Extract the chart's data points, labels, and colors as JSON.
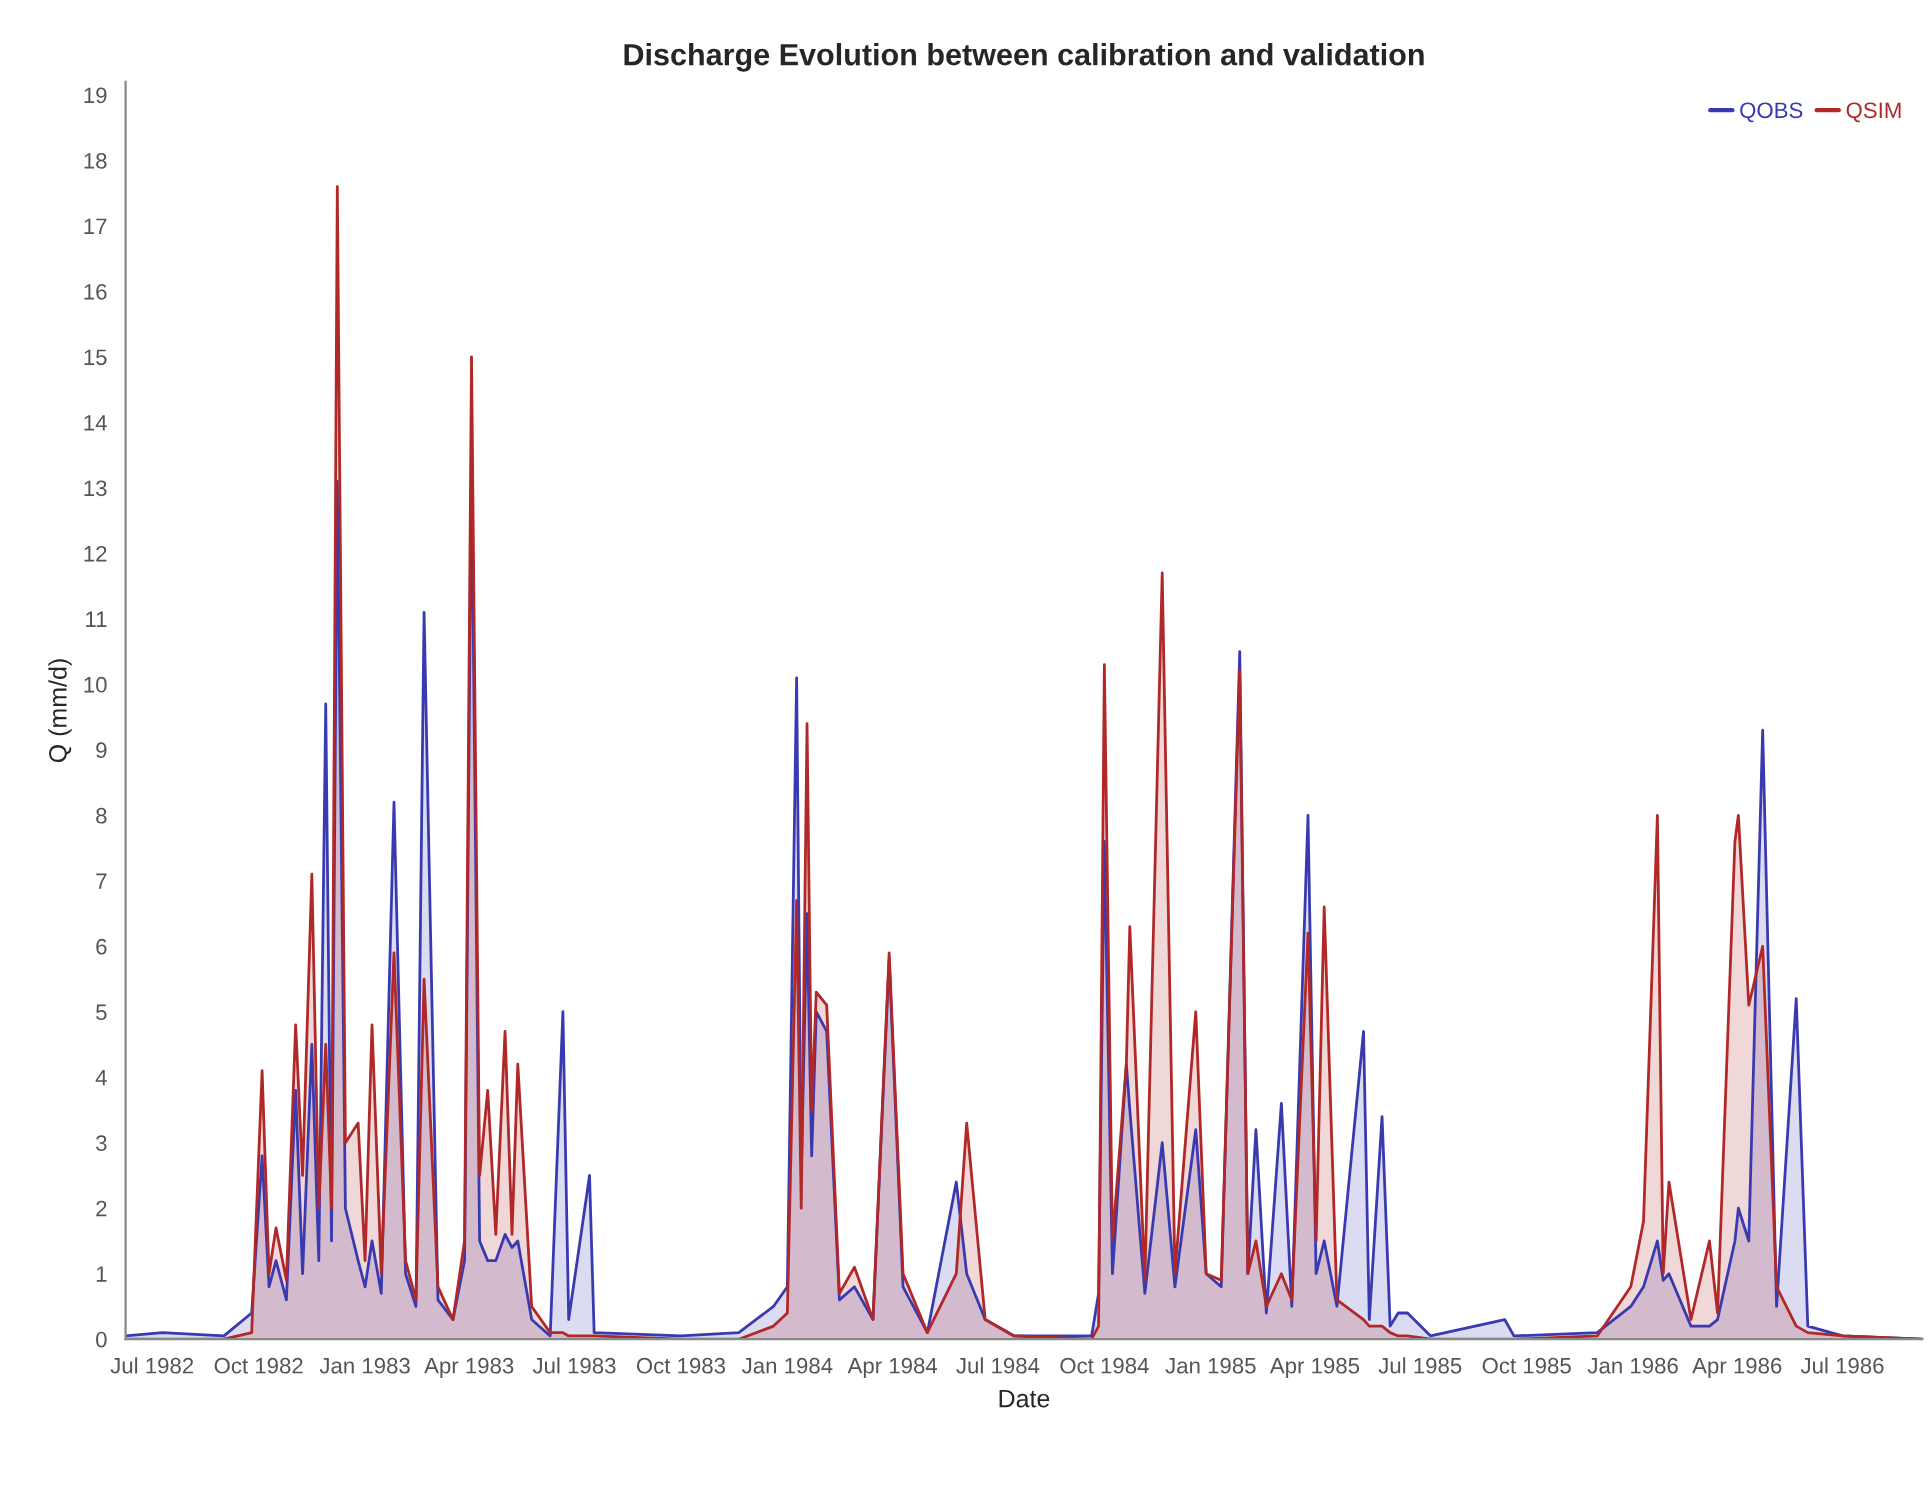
{
  "chart_data": {
    "type": "area",
    "title": "Discharge Evolution between calibration and validation",
    "xlabel": "Date",
    "ylabel": "Q (mm/d)",
    "x": [
      "1982-06-08",
      "1982-07-10",
      "1982-09-01",
      "1982-09-25",
      "1982-10-04",
      "1982-10-10",
      "1982-10-16",
      "1982-10-25",
      "1982-11-02",
      "1982-11-08",
      "1982-11-16",
      "1982-11-22",
      "1982-11-28",
      "1982-12-03",
      "1982-12-08",
      "1982-12-15",
      "1982-12-26",
      "1983-01-01",
      "1983-01-07",
      "1983-01-15",
      "1983-01-26",
      "1983-02-05",
      "1983-02-14",
      "1983-02-21",
      "1983-03-05",
      "1983-03-18",
      "1983-03-28",
      "1983-04-03",
      "1983-04-10",
      "1983-04-17",
      "1983-04-24",
      "1983-05-02",
      "1983-05-08",
      "1983-05-13",
      "1983-05-25",
      "1983-06-10",
      "1983-06-21",
      "1983-06-26",
      "1983-07-14",
      "1983-07-18",
      "1983-10-01",
      "1983-11-20",
      "1983-12-20",
      "1984-01-01",
      "1984-01-09",
      "1984-01-13",
      "1984-01-18",
      "1984-01-22",
      "1984-01-26",
      "1984-02-04",
      "1984-02-15",
      "1984-02-28",
      "1984-03-15",
      "1984-03-29",
      "1984-04-10",
      "1984-05-01",
      "1984-05-26",
      "1984-06-04",
      "1984-06-20",
      "1984-07-15",
      "1984-09-20",
      "1984-09-26",
      "1984-10-01",
      "1984-10-08",
      "1984-10-20",
      "1984-10-23",
      "1984-11-05",
      "1984-11-20",
      "1984-12-01",
      "1984-12-19",
      "1984-12-28",
      "1985-01-10",
      "1985-01-26",
      "1985-02-02",
      "1985-02-09",
      "1985-02-18",
      "1985-03-03",
      "1985-03-12",
      "1985-03-26",
      "1985-04-02",
      "1985-04-09",
      "1985-04-20",
      "1985-05-13",
      "1985-05-18",
      "1985-05-29",
      "1985-06-05",
      "1985-06-12",
      "1985-06-20",
      "1985-07-10",
      "1985-09-12",
      "1985-09-20",
      "1985-12-01",
      "1985-12-30",
      "1986-01-10",
      "1986-01-22",
      "1986-01-27",
      "1986-02-01",
      "1986-02-20",
      "1986-03-08",
      "1986-03-15",
      "1986-03-30",
      "1986-04-02",
      "1986-04-11",
      "1986-04-23",
      "1986-05-05",
      "1986-05-22",
      "1986-06-01",
      "1986-07-01",
      "1986-09-08"
    ],
    "series": [
      {
        "name": "QOBS",
        "color": "#3a3ab0",
        "values": [
          0.05,
          0.1,
          0.05,
          0.4,
          2.8,
          0.8,
          1.2,
          0.6,
          3.8,
          1.0,
          4.5,
          1.2,
          9.7,
          1.5,
          13.1,
          2.0,
          1.2,
          0.8,
          1.5,
          0.7,
          8.2,
          1.0,
          0.5,
          11.1,
          0.6,
          0.3,
          1.2,
          13.4,
          1.5,
          1.2,
          1.2,
          1.6,
          1.4,
          1.5,
          0.3,
          0.05,
          5.0,
          0.3,
          2.5,
          0.1,
          0.05,
          0.1,
          0.5,
          0.8,
          10.1,
          2.5,
          6.5,
          2.8,
          5.0,
          4.7,
          0.6,
          0.8,
          0.3,
          5.8,
          0.8,
          0.1,
          2.4,
          1.0,
          0.3,
          0.05,
          0.05,
          0.7,
          7.6,
          1.0,
          4.2,
          3.5,
          0.7,
          3.0,
          0.8,
          3.2,
          1.0,
          0.8,
          10.5,
          1.0,
          3.2,
          0.4,
          3.6,
          0.5,
          8.0,
          1.0,
          1.5,
          0.5,
          4.7,
          0.3,
          3.4,
          0.2,
          0.4,
          0.4,
          0.05,
          0.3,
          0.05,
          0.1,
          0.5,
          0.8,
          1.5,
          0.9,
          1.0,
          0.2,
          0.2,
          0.3,
          1.5,
          2.0,
          1.5,
          9.3,
          0.5,
          5.2,
          0.2,
          0.05,
          0.0
        ]
      },
      {
        "name": "QSIM",
        "color": "#b02828",
        "values": [
          0.0,
          0.0,
          0.0,
          0.1,
          4.1,
          1.0,
          1.7,
          0.9,
          4.8,
          2.5,
          7.1,
          2.0,
          4.5,
          2.0,
          17.6,
          3.0,
          3.3,
          1.2,
          4.8,
          1.0,
          5.9,
          1.2,
          0.6,
          5.5,
          0.8,
          0.3,
          1.5,
          15.0,
          2.5,
          3.8,
          1.6,
          4.7,
          1.6,
          4.2,
          0.5,
          0.1,
          0.1,
          0.05,
          0.05,
          0.05,
          0.0,
          0.0,
          0.2,
          0.4,
          6.7,
          2.0,
          9.4,
          3.5,
          5.3,
          5.1,
          0.7,
          1.1,
          0.3,
          5.9,
          1.0,
          0.1,
          1.0,
          3.3,
          0.3,
          0.05,
          0.0,
          0.2,
          10.3,
          1.5,
          4.2,
          6.3,
          0.9,
          11.7,
          1.0,
          5.0,
          1.0,
          0.9,
          10.2,
          1.0,
          1.5,
          0.5,
          1.0,
          0.6,
          6.2,
          1.5,
          6.6,
          0.6,
          0.3,
          0.2,
          0.2,
          0.1,
          0.05,
          0.05,
          0.0,
          0.0,
          0.0,
          0.05,
          0.8,
          1.8,
          8.0,
          1.0,
          2.4,
          0.3,
          1.5,
          0.4,
          7.6,
          8.0,
          5.1,
          6.0,
          0.8,
          0.2,
          0.1,
          0.05,
          0.0
        ]
      }
    ],
    "xlim": [
      "1982-06-08",
      "1986-09-08"
    ],
    "xticks": [
      {
        "value": "1982-07-01",
        "label": "Jul 1982"
      },
      {
        "value": "1982-10-01",
        "label": "Oct 1982"
      },
      {
        "value": "1983-01-01",
        "label": "Jan 1983"
      },
      {
        "value": "1983-04-01",
        "label": "Apr 1983"
      },
      {
        "value": "1983-07-01",
        "label": "Jul 1983"
      },
      {
        "value": "1983-10-01",
        "label": "Oct 1983"
      },
      {
        "value": "1984-01-01",
        "label": "Jan 1984"
      },
      {
        "value": "1984-04-01",
        "label": "Apr 1984"
      },
      {
        "value": "1984-07-01",
        "label": "Jul 1984"
      },
      {
        "value": "1984-10-01",
        "label": "Oct 1984"
      },
      {
        "value": "1985-01-01",
        "label": "Jan 1985"
      },
      {
        "value": "1985-04-01",
        "label": "Apr 1985"
      },
      {
        "value": "1985-07-01",
        "label": "Jul 1985"
      },
      {
        "value": "1985-10-01",
        "label": "Oct 1985"
      },
      {
        "value": "1986-01-01",
        "label": "Jan 1986"
      },
      {
        "value": "1986-04-01",
        "label": "Apr 1986"
      },
      {
        "value": "1986-07-01",
        "label": "Jul 1986"
      }
    ],
    "ylim": [
      0,
      19.2
    ],
    "yticks": [
      0,
      1,
      2,
      3,
      4,
      5,
      6,
      7,
      8,
      9,
      10,
      11,
      12,
      13,
      14,
      15,
      16,
      17,
      18,
      19
    ],
    "grid": false,
    "legend": "top right",
    "marker": "none",
    "line_style": "solid"
  }
}
